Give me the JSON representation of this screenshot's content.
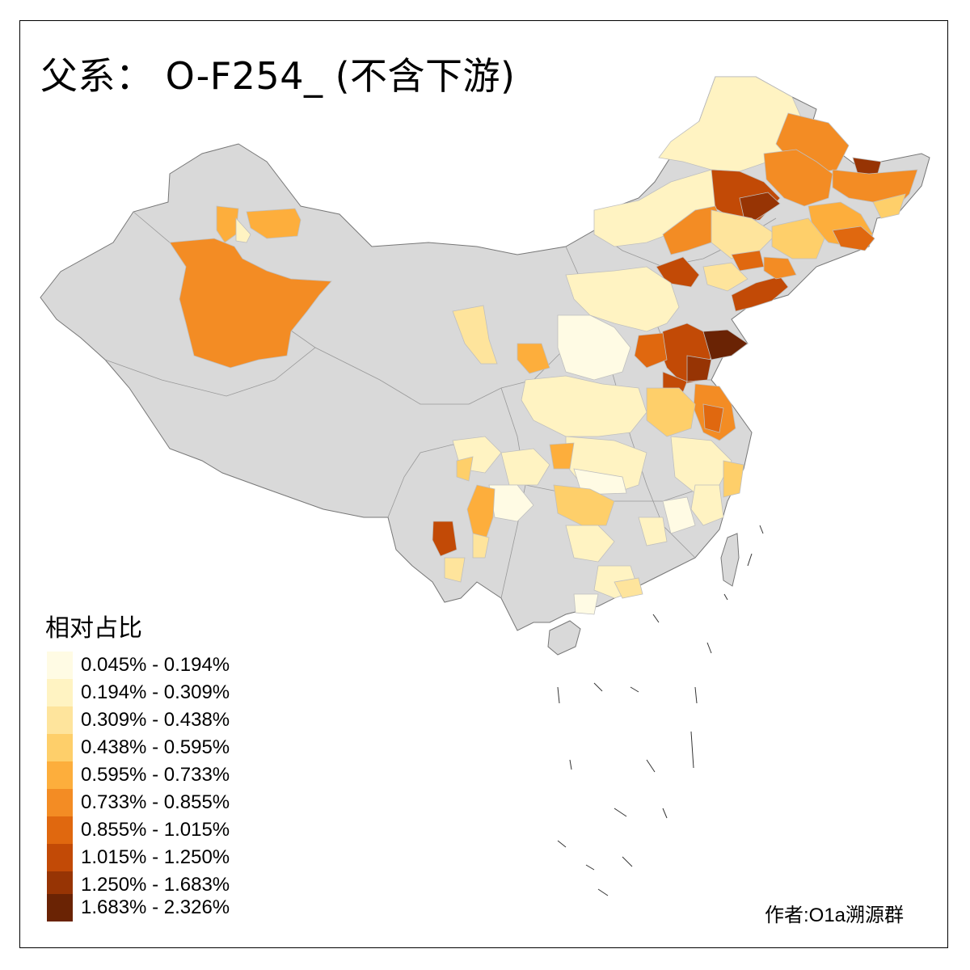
{
  "title": "父系： O-F254_ (不含下游)",
  "legend": {
    "title": "相对占比",
    "classes": [
      {
        "label": "0.045% - 0.194%",
        "color": "#FFFBE4"
      },
      {
        "label": "0.194% - 0.309%",
        "color": "#FFF3C2"
      },
      {
        "label": "0.309% - 0.438%",
        "color": "#FEE49C"
      },
      {
        "label": "0.438% - 0.595%",
        "color": "#FECF6A"
      },
      {
        "label": "0.595% - 0.733%",
        "color": "#FDAE3C"
      },
      {
        "label": "0.733% - 0.855%",
        "color": "#F38C24"
      },
      {
        "label": "0.855% - 1.015%",
        "color": "#E0680F"
      },
      {
        "label": "1.015% - 1.250%",
        "color": "#C24A06"
      },
      {
        "label": "1.250% - 1.683%",
        "color": "#973404"
      },
      {
        "label": "1.683% - 2.326%",
        "color": "#6A2304"
      }
    ]
  },
  "no_data_color": "#D9D9D9",
  "author": "作者:O1a溯源群"
}
